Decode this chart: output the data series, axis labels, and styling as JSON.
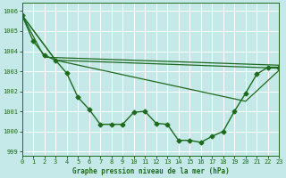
{
  "title": "Graphe pression niveau de la mer (hPa)",
  "bg_color": "#c5e8e8",
  "grid_color": "#ffffff",
  "line_color": "#1e6b1e",
  "xlim": [
    0,
    23
  ],
  "ylim": [
    998.8,
    1006.4
  ],
  "yticks": [
    999,
    1000,
    1001,
    1002,
    1003,
    1004,
    1005,
    1006
  ],
  "xticks": [
    0,
    1,
    2,
    3,
    4,
    5,
    6,
    7,
    8,
    9,
    10,
    11,
    12,
    13,
    14,
    15,
    16,
    17,
    18,
    19,
    20,
    21,
    22,
    23
  ],
  "series": [
    {
      "x": [
        0,
        1,
        2,
        3,
        4,
        5,
        6,
        7,
        8,
        9,
        10,
        11,
        12,
        13,
        14,
        15,
        16,
        17,
        18,
        19,
        20,
        21,
        22,
        23
      ],
      "y": [
        1005.8,
        1004.5,
        1003.8,
        1003.55,
        1002.9,
        1001.7,
        1001.1,
        1000.35,
        1000.35,
        1000.35,
        1000.95,
        1001.0,
        1000.4,
        1000.35,
        999.55,
        999.55,
        999.45,
        999.75,
        1000.0,
        1001.0,
        1001.9,
        1002.85,
        1003.2,
        1003.2
      ],
      "marker": "D",
      "markersize": 2.5,
      "linewidth": 1.0
    },
    {
      "x": [
        0,
        2,
        23
      ],
      "y": [
        1005.8,
        1003.7,
        1003.3
      ],
      "marker": null,
      "linewidth": 0.9
    },
    {
      "x": [
        0,
        3,
        23
      ],
      "y": [
        1005.8,
        1003.55,
        1003.15
      ],
      "marker": null,
      "linewidth": 0.9
    },
    {
      "x": [
        0,
        3,
        20,
        23
      ],
      "y": [
        1005.8,
        1003.55,
        1001.5,
        1003.05
      ],
      "marker": null,
      "linewidth": 0.9
    }
  ]
}
